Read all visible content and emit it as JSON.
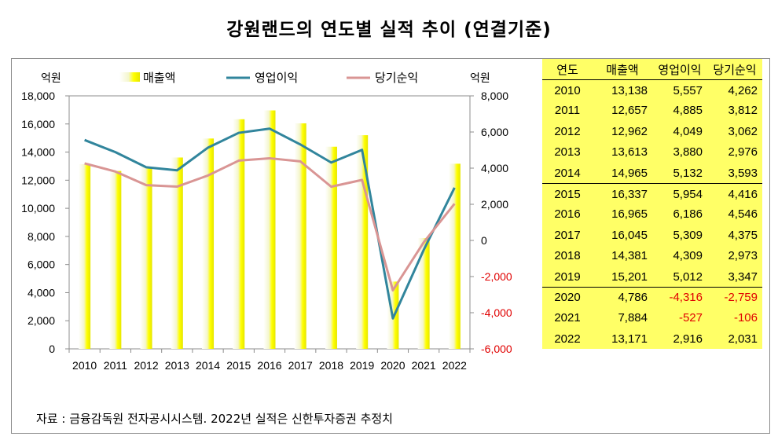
{
  "title": "강원랜드의 연도별 실적 추이 (연결기준)",
  "source": "자료 : 금융감독원 전자공시시스템. 2022년 실적은 신한투자증권 추정치",
  "chart_data": {
    "type": "bar",
    "categories": [
      "2010",
      "2011",
      "2012",
      "2013",
      "2014",
      "2015",
      "2016",
      "2017",
      "2018",
      "2019",
      "2020",
      "2021",
      "2022"
    ],
    "left_axis_unit": "억원",
    "right_axis_unit": "억원",
    "left_ylim": [
      0,
      18000
    ],
    "right_ylim": [
      -6000,
      8000
    ],
    "left_ticks": [
      "0",
      "2,000",
      "4,000",
      "6,000",
      "8,000",
      "10,000",
      "12,000",
      "14,000",
      "16,000",
      "18,000"
    ],
    "right_ticks": [
      "-6,000",
      "-4,000",
      "-2,000",
      "0",
      "2,000",
      "4,000",
      "6,000",
      "8,000"
    ],
    "series": [
      {
        "name": "매출액",
        "kind": "bar",
        "axis": "left",
        "color": "#ffff00",
        "values": [
          13138,
          12657,
          12962,
          13613,
          14965,
          16337,
          16965,
          16045,
          14381,
          15201,
          4786,
          7884,
          13171
        ]
      },
      {
        "name": "영업이익",
        "kind": "line",
        "axis": "right",
        "color": "#31859c",
        "values": [
          5557,
          4885,
          4049,
          3880,
          5132,
          5954,
          6186,
          5309,
          4309,
          5012,
          -4316,
          -527,
          2916
        ]
      },
      {
        "name": "당기순익",
        "kind": "line",
        "axis": "right",
        "color": "#d99594",
        "values": [
          4262,
          3812,
          3062,
          2976,
          3593,
          4416,
          4546,
          4375,
          2973,
          3347,
          -2759,
          -106,
          2031
        ]
      }
    ],
    "legend": "top",
    "grid": false
  },
  "table": {
    "headers": [
      "연도",
      "매출액",
      "영업이익",
      "당기순익"
    ],
    "rows": [
      [
        "2010",
        "13,138",
        "5,557",
        "4,262"
      ],
      [
        "2011",
        "12,657",
        "4,885",
        "3,812"
      ],
      [
        "2012",
        "12,962",
        "4,049",
        "3,062"
      ],
      [
        "2013",
        "13,613",
        "3,880",
        "2,976"
      ],
      [
        "2014",
        "14,965",
        "5,132",
        "3,593"
      ],
      [
        "2015",
        "16,337",
        "5,954",
        "4,416"
      ],
      [
        "2016",
        "16,965",
        "6,186",
        "4,546"
      ],
      [
        "2017",
        "16,045",
        "5,309",
        "4,375"
      ],
      [
        "2018",
        "14,381",
        "4,309",
        "2,973"
      ],
      [
        "2019",
        "15,201",
        "5,012",
        "3,347"
      ],
      [
        "2020",
        "4,786",
        "-4,316",
        "-2,759"
      ],
      [
        "2021",
        "7,884",
        "-527",
        "-106"
      ],
      [
        "2022",
        "13,171",
        "2,916",
        "2,031"
      ]
    ],
    "negative_color": "#e00000"
  }
}
